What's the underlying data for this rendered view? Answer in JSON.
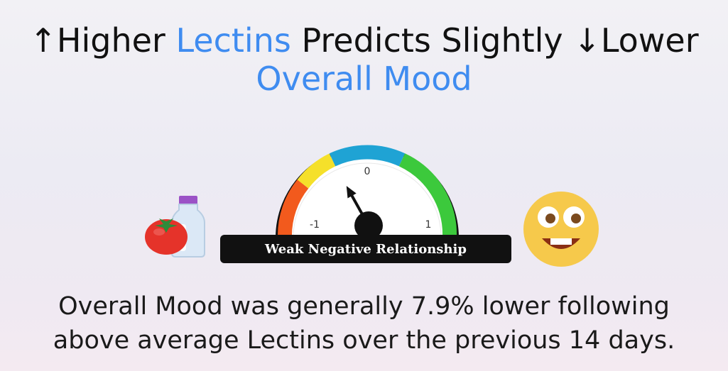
{
  "title": {
    "arrow_up": "↑",
    "word_higher": "Higher",
    "predictor": "Lectins",
    "middle": "Predicts Slightly",
    "arrow_down": "↓",
    "word_lower": "Lower",
    "outcome": "Overall Mood"
  },
  "gauge": {
    "tick_min": "-1",
    "tick_zero": "0",
    "tick_max": "1",
    "needle_value": -0.08,
    "relationship_label": "Weak Negative Relationship",
    "colors": {
      "red": "#f25a1d",
      "yellow": "#f5e02a",
      "blue": "#1fa3d4",
      "green": "#3cc93c"
    }
  },
  "summary": {
    "line1": "Overall Mood was generally 7.9% lower following",
    "line2": "above average Lectins over the previous 14 days."
  },
  "icons": {
    "left": "tomato-milk-icon",
    "right": "laughing-face-icon"
  },
  "accent_color": "#3f8cf0"
}
